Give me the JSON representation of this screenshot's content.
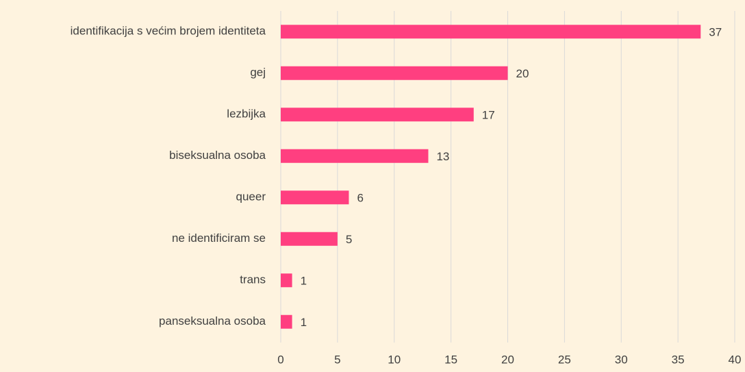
{
  "chart_data": {
    "type": "bar",
    "orientation": "horizontal",
    "categories": [
      "identifikacija s većim brojem identiteta",
      "gej",
      "lezbijka",
      "biseksualna osoba",
      "queer",
      "ne identificiram se",
      "trans",
      "panseksualna osoba"
    ],
    "values": [
      37,
      20,
      17,
      13,
      6,
      5,
      1,
      1
    ],
    "color": "#ff3f80",
    "xlim": [
      0,
      40
    ],
    "xticks": [
      0,
      5,
      10,
      15,
      20,
      25,
      30,
      35,
      40
    ],
    "grid": true
  }
}
